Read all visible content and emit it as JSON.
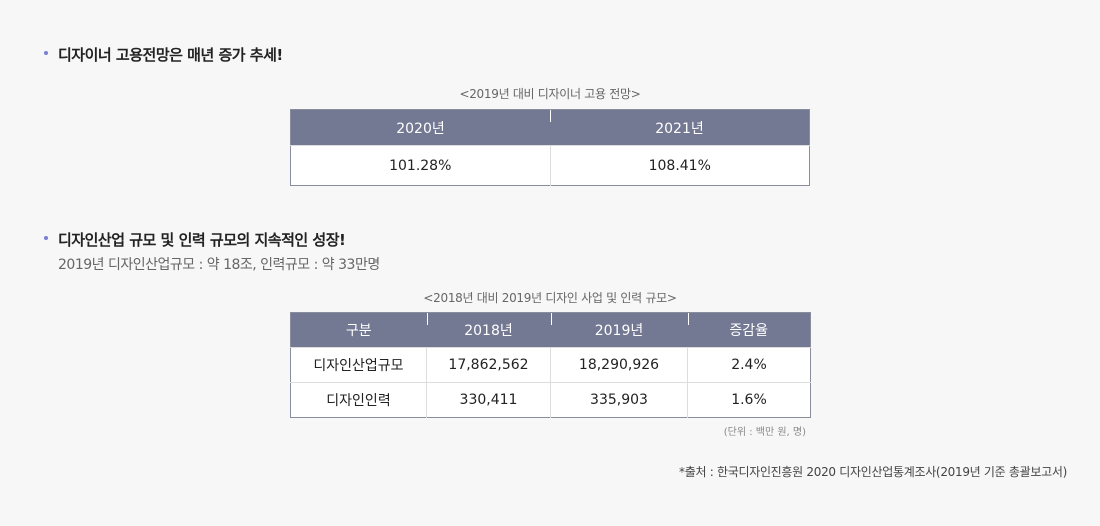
{
  "section1": {
    "title": "디자이너 고용전망은 매년 증가 추세!",
    "caption": "<2019년 대비 디자이너 고용 전망>",
    "headers": [
      "2020년",
      "2021년"
    ],
    "values": [
      "101.28%",
      "108.41%"
    ]
  },
  "section2": {
    "title": "디자인산업 규모 및 인력 규모의 지속적인 성장!",
    "subtitle": "2019년 디자인산업규모 : 약 18조, 인력규모 : 약 33만명",
    "caption": "<2018년 대비 2019년 디자인 사업 및 인력 규모>",
    "headers": [
      "구분",
      "2018년",
      "2019년",
      "증감율"
    ],
    "rows": [
      [
        "디자인산업규모",
        "17,862,562",
        "18,290,926",
        "2.4%"
      ],
      [
        "디자인인력",
        "330,411",
        "335,903",
        "1.6%"
      ]
    ],
    "unit": "(단위 : 백만 원, 명)"
  },
  "source": "*출처 : 한국디자인진흥원 2020 디자인산업통계조사(2019년 기준 총괄보고서)",
  "colors": {
    "bullet": "#7b7fd6",
    "header": "#737893"
  }
}
